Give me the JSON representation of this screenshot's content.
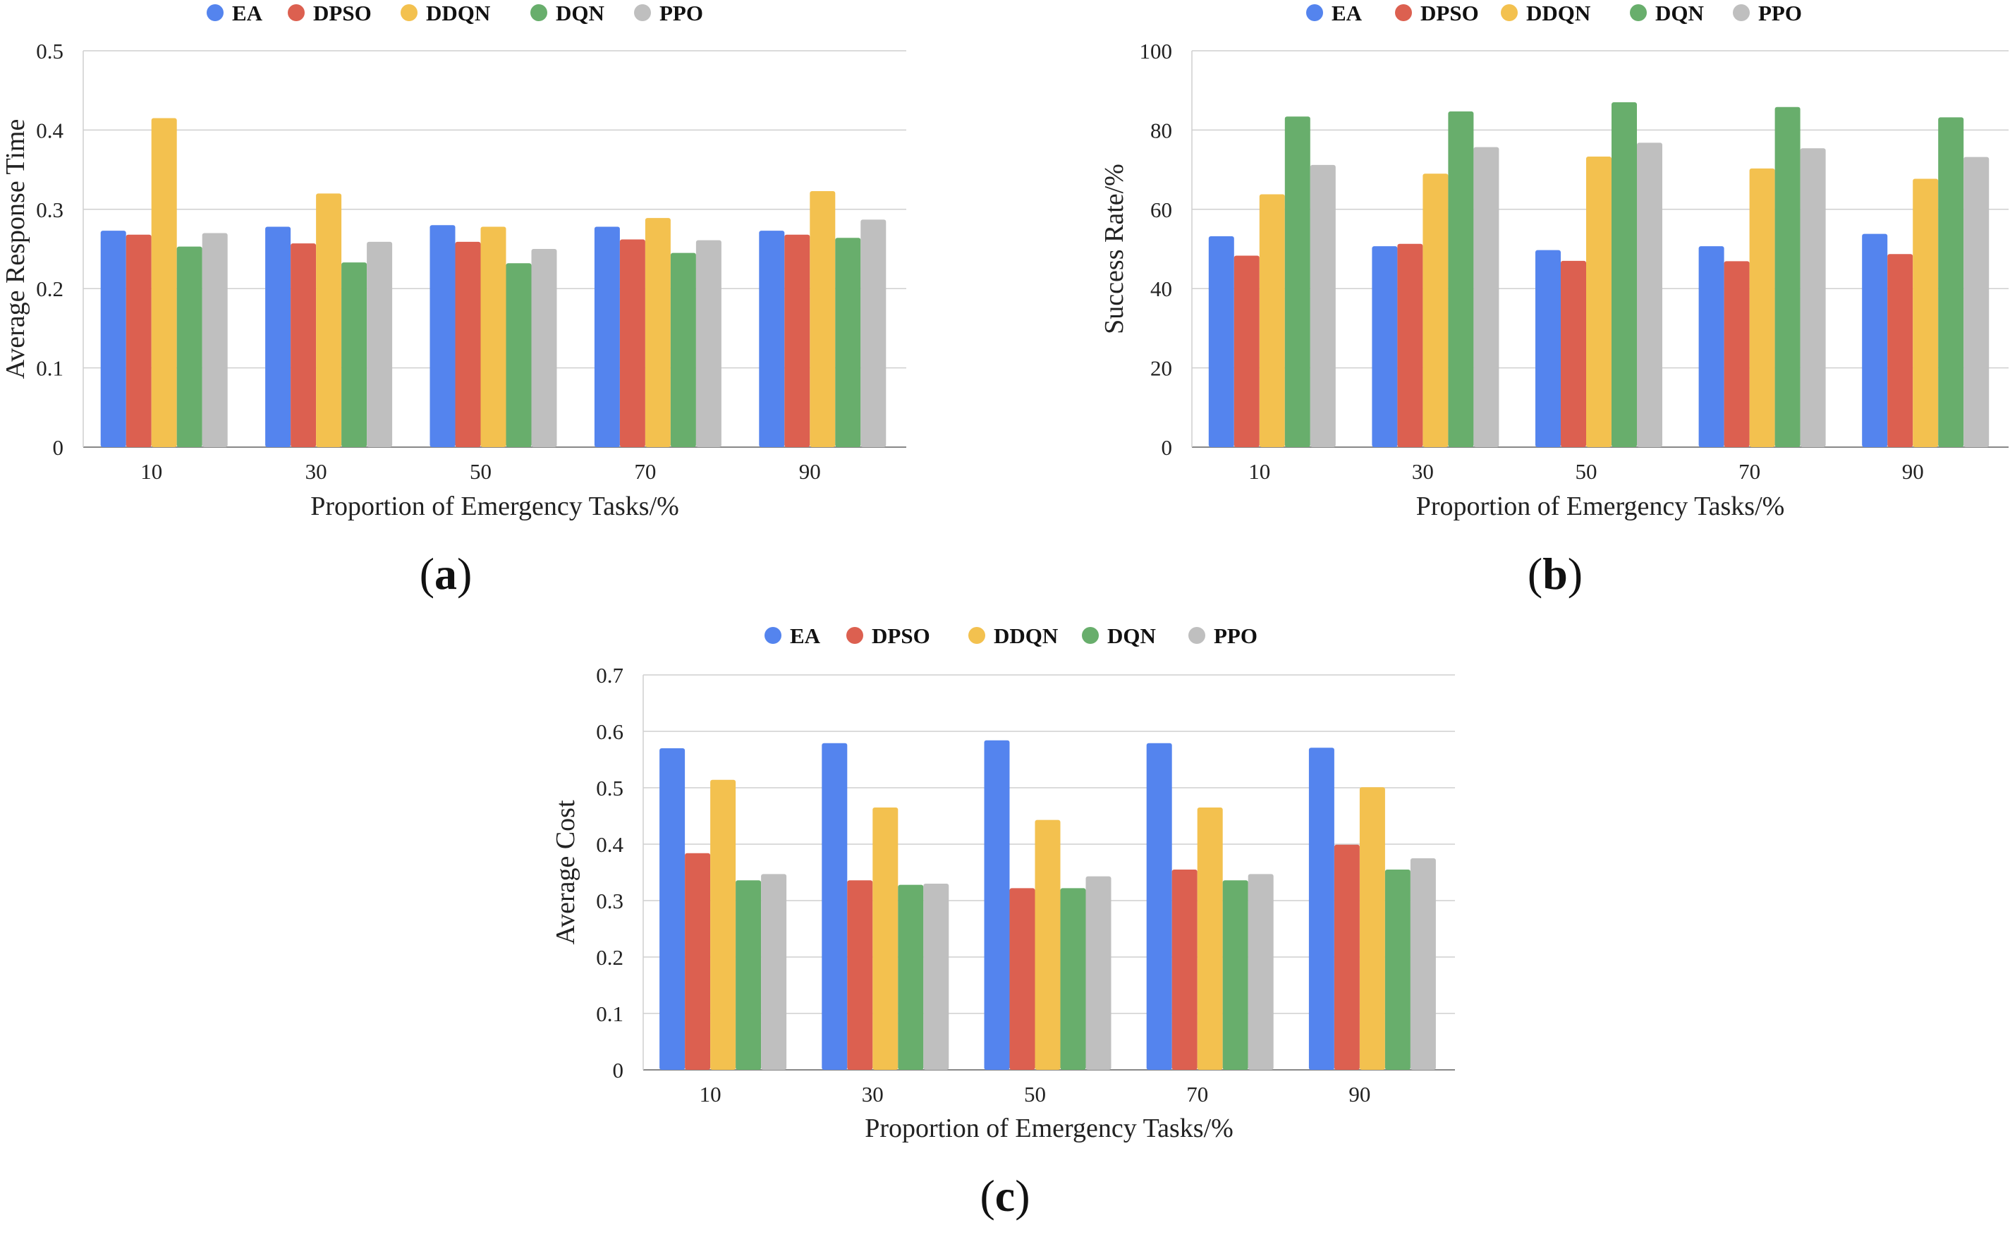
{
  "legend": [
    "EA",
    "DPSO",
    "DDQN",
    "DQN",
    "PPO"
  ],
  "colors": {
    "EA": "#5484ee",
    "DPSO": "#dc6050",
    "DDQN": "#f3c14f",
    "DQN": "#68ae6c",
    "PPO": "#bfbfbf"
  },
  "panels": [
    {
      "letter": "a",
      "open": "(",
      "close": ")"
    },
    {
      "letter": "b",
      "open": "(",
      "close": ")"
    },
    {
      "letter": "c",
      "open": "(",
      "close": ")"
    }
  ],
  "chart_data": [
    {
      "type": "bar",
      "categories": [
        "10",
        "30",
        "50",
        "70",
        "90"
      ],
      "xlabel": "Proportion of Emergency Tasks/%",
      "ylabel": "Average Response Time",
      "ylim": [
        0,
        0.5
      ],
      "yticks": [
        "0",
        "0.1",
        "0.2",
        "0.3",
        "0.4",
        "0.5"
      ],
      "grid": true,
      "legend_position": "top",
      "series": [
        {
          "name": "EA",
          "values": [
            0.273,
            0.278,
            0.28,
            0.278,
            0.273
          ]
        },
        {
          "name": "DPSO",
          "values": [
            0.268,
            0.257,
            0.259,
            0.262,
            0.268
          ]
        },
        {
          "name": "DDQN",
          "values": [
            0.415,
            0.32,
            0.278,
            0.289,
            0.323
          ]
        },
        {
          "name": "DQN",
          "values": [
            0.253,
            0.233,
            0.232,
            0.245,
            0.264
          ]
        },
        {
          "name": "PPO",
          "values": [
            0.27,
            0.259,
            0.25,
            0.261,
            0.287
          ]
        }
      ]
    },
    {
      "type": "bar",
      "categories": [
        "10",
        "30",
        "50",
        "70",
        "90"
      ],
      "xlabel": "Proportion of Emergency Tasks/%",
      "ylabel": "Success Rate/%",
      "ylim": [
        0,
        100
      ],
      "yticks": [
        "0",
        "20",
        "40",
        "60",
        "80",
        "100"
      ],
      "grid": true,
      "legend_position": "top",
      "series": [
        {
          "name": "EA",
          "values": [
            53.2,
            50.7,
            49.7,
            50.7,
            53.8
          ]
        },
        {
          "name": "DPSO",
          "values": [
            48.3,
            51.3,
            47.0,
            46.9,
            48.7
          ]
        },
        {
          "name": "DDQN",
          "values": [
            63.8,
            69.0,
            73.3,
            70.3,
            67.7
          ]
        },
        {
          "name": "DQN",
          "values": [
            83.4,
            84.7,
            87.0,
            85.8,
            83.2
          ]
        },
        {
          "name": "PPO",
          "values": [
            71.2,
            75.7,
            76.8,
            75.4,
            73.2
          ]
        }
      ]
    },
    {
      "type": "bar",
      "categories": [
        "10",
        "30",
        "50",
        "70",
        "90"
      ],
      "xlabel": "Proportion of Emergency Tasks/%",
      "ylabel": "Average Cost",
      "ylim": [
        0,
        0.7
      ],
      "yticks": [
        "0",
        "0.1",
        "0.2",
        "0.3",
        "0.4",
        "0.5",
        "0.6",
        "0.7"
      ],
      "grid": true,
      "legend_position": "top",
      "series": [
        {
          "name": "EA",
          "values": [
            0.57,
            0.579,
            0.584,
            0.579,
            0.571
          ]
        },
        {
          "name": "DPSO",
          "values": [
            0.384,
            0.336,
            0.322,
            0.355,
            0.399
          ]
        },
        {
          "name": "DDQN",
          "values": [
            0.514,
            0.465,
            0.443,
            0.465,
            0.501
          ]
        },
        {
          "name": "DQN",
          "values": [
            0.336,
            0.328,
            0.322,
            0.336,
            0.355
          ]
        },
        {
          "name": "PPO",
          "values": [
            0.347,
            0.33,
            0.343,
            0.347,
            0.375
          ]
        }
      ]
    }
  ]
}
